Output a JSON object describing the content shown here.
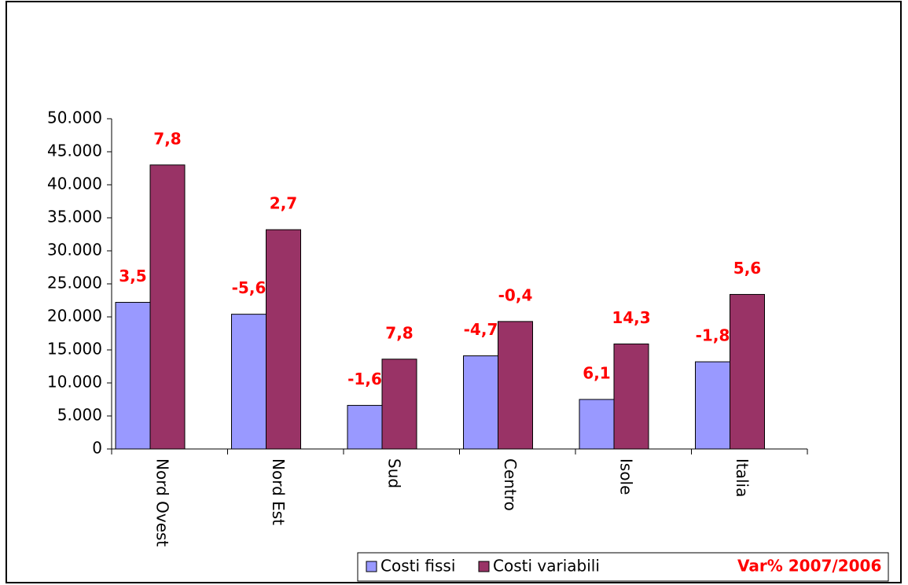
{
  "chart_data": {
    "type": "bar",
    "categories": [
      "Nord Ovest",
      "Nord Est",
      "Sud",
      "Centro",
      "Isole",
      "Italia"
    ],
    "series": [
      {
        "name": "Costi fissi",
        "color": "#9999ff",
        "values": [
          22200,
          20400,
          6600,
          14100,
          7500,
          13200
        ],
        "changes": [
          3.5,
          -5.6,
          -1.6,
          -4.7,
          6.1,
          -1.8
        ],
        "change_labels": [
          "3,5",
          "-5,6",
          "-1,6",
          "-4,7",
          "6,1",
          "-1,8"
        ]
      },
      {
        "name": "Costi variabili",
        "color": "#993366",
        "values": [
          43000,
          33200,
          13600,
          19300,
          15900,
          23400
        ],
        "changes": [
          7.8,
          2.7,
          7.8,
          -0.4,
          14.3,
          5.6
        ],
        "change_labels": [
          "7,8",
          "2,7",
          "7,8",
          "-0,4",
          "14,3",
          "5,6"
        ]
      }
    ],
    "change_legend": "Var% 2007/2006",
    "change_color": "#ff0000",
    "ylim": [
      0,
      50000
    ],
    "yticks": [
      0,
      {
        "value": 5000,
        "label": "5.000"
      },
      {
        "value": 10000,
        "label": "10.000"
      },
      {
        "value": 15000,
        "label": "15.000"
      },
      {
        "value": 20000,
        "label": "20.000"
      },
      {
        "value": 25000,
        "label": "25.000"
      },
      {
        "value": 30000,
        "label": "30.000"
      },
      {
        "value": 35000,
        "label": "35.000"
      },
      {
        "value": 40000,
        "label": "40.000"
      },
      {
        "value": 45000,
        "label": "45.000"
      },
      {
        "value": 50000,
        "label": "50.000"
      }
    ],
    "grid": false
  }
}
